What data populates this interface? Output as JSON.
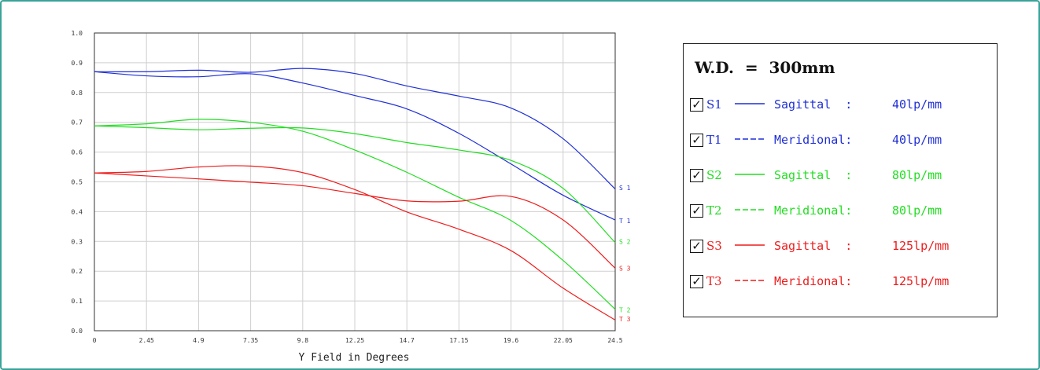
{
  "chart_data": {
    "type": "line",
    "xlabel": "Y Field in Degrees",
    "ylabel": "",
    "xlim": [
      0,
      24.5
    ],
    "ylim": [
      0.0,
      1.0
    ],
    "grid": true,
    "x_ticks": [
      "0",
      "2.45",
      "4.9",
      "7.35",
      "9.8",
      "12.25",
      "14.7",
      "17.15",
      "19.6",
      "22.05",
      "24.5"
    ],
    "y_ticks": [
      "0.0",
      "0.1",
      "0.2",
      "0.3",
      "0.4",
      "0.5",
      "0.6",
      "0.7",
      "0.8",
      "0.9",
      "1.0"
    ],
    "x": [
      0,
      2.45,
      4.9,
      7.35,
      9.8,
      12.25,
      14.7,
      17.15,
      19.6,
      22.05,
      24.5
    ],
    "series": [
      {
        "name": "S1",
        "color": "#1f2fd6",
        "dash": "solid",
        "values": [
          0.87,
          0.87,
          0.875,
          0.868,
          0.881,
          0.864,
          0.822,
          0.788,
          0.748,
          0.645,
          0.476
        ]
      },
      {
        "name": "T1",
        "color": "#1f2fd6",
        "dash": "dashed",
        "values": [
          0.87,
          0.856,
          0.853,
          0.863,
          0.832,
          0.79,
          0.745,
          0.663,
          0.56,
          0.455,
          0.372
        ]
      },
      {
        "name": "S2",
        "color": "#22dd22",
        "dash": "solid",
        "values": [
          0.688,
          0.682,
          0.675,
          0.68,
          0.681,
          0.662,
          0.632,
          0.607,
          0.572,
          0.478,
          0.296
        ]
      },
      {
        "name": "T2",
        "color": "#22dd22",
        "dash": "dashed",
        "values": [
          0.688,
          0.695,
          0.71,
          0.7,
          0.67,
          0.607,
          0.532,
          0.448,
          0.37,
          0.236,
          0.072
        ]
      },
      {
        "name": "S3",
        "color": "#ee1c1c",
        "dash": "solid",
        "values": [
          0.53,
          0.52,
          0.51,
          0.499,
          0.487,
          0.461,
          0.436,
          0.435,
          0.451,
          0.372,
          0.21
        ]
      },
      {
        "name": "T3",
        "color": "#ee1c1c",
        "dash": "dashed",
        "values": [
          0.53,
          0.535,
          0.55,
          0.553,
          0.531,
          0.474,
          0.399,
          0.341,
          0.269,
          0.143,
          0.036
        ]
      }
    ],
    "end_labels": [
      {
        "text": "S 1",
        "value": 0.48,
        "color": "#1f2fd6"
      },
      {
        "text": "T 1",
        "value": 0.37,
        "color": "#1f2fd6"
      },
      {
        "text": "S 2",
        "value": 0.3,
        "color": "#22dd22"
      },
      {
        "text": "S 3",
        "value": 0.21,
        "color": "#ee1c1c"
      },
      {
        "text": "T 2",
        "value": 0.07,
        "color": "#22dd22"
      },
      {
        "text": "T 3",
        "value": 0.04,
        "color": "#ee1c1c"
      }
    ]
  },
  "legend": {
    "title": "W.D.  =  300mm",
    "checkbox_mark": "☑",
    "items": [
      {
        "id": "S1",
        "style": "solid",
        "color": "#1f2fd6",
        "desc": "Sagittal  :",
        "freq": "40lp/mm"
      },
      {
        "id": "T1",
        "style": "dashed",
        "color": "#1f2fd6",
        "desc": "Meridional:",
        "freq": "40lp/mm"
      },
      {
        "id": "S2",
        "style": "solid",
        "color": "#22dd22",
        "desc": "Sagittal  :",
        "freq": "80lp/mm"
      },
      {
        "id": "T2",
        "style": "dashed",
        "color": "#22dd22",
        "desc": "Meridional:",
        "freq": "80lp/mm"
      },
      {
        "id": "S3",
        "style": "solid",
        "color": "#ee1c1c",
        "desc": "Sagittal  :",
        "freq": "125lp/mm"
      },
      {
        "id": "T3",
        "style": "dashed",
        "color": "#ee1c1c",
        "desc": "Meridional:",
        "freq": "125lp/mm"
      }
    ]
  }
}
